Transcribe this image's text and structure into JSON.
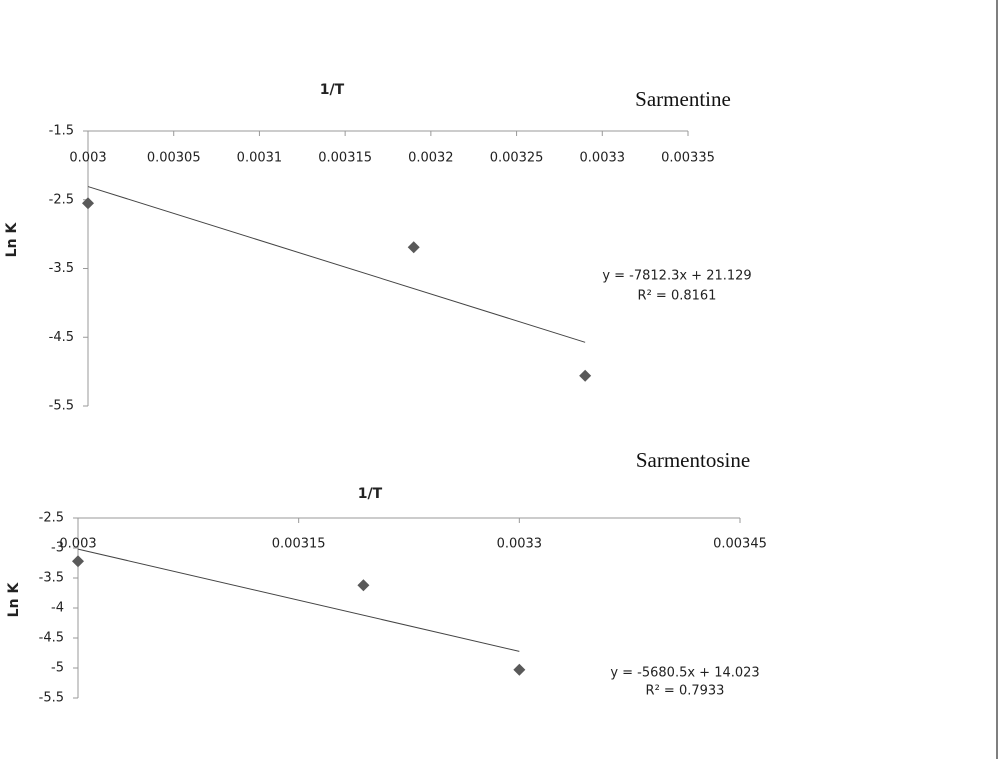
{
  "chart_data": [
    {
      "type": "scatter",
      "title": "Sarmentine",
      "x_label": "1/T",
      "y_label": "Ln K",
      "x": [
        0.003,
        0.00319,
        0.00329
      ],
      "values": [
        -2.55,
        -3.19,
        -5.06
      ],
      "color": "#595959",
      "xlim": [
        0.003,
        0.00335
      ],
      "xticks": [
        0.003,
        0.00305,
        0.0031,
        0.00315,
        0.0032,
        0.00325,
        0.0033,
        0.00335
      ],
      "ylim": [
        -5.5,
        -1.5
      ],
      "yticks": [
        -1.5,
        -2.5,
        -3.5,
        -4.5,
        -5.5
      ],
      "trendline": {
        "slope": -7812.3,
        "intercept": 21.129,
        "equation": "y = -7812.3x + 21.129",
        "r2": "R² = 0.8161"
      }
    },
    {
      "type": "scatter",
      "title": "Sarmentosine",
      "x_label": "1/T",
      "y_label": "Ln K",
      "x": [
        0.003,
        0.003194,
        0.0033
      ],
      "values": [
        -3.22,
        -3.62,
        -5.03
      ],
      "color": "#595959",
      "xlim": [
        0.003,
        0.00345
      ],
      "xticks": [
        0.003,
        0.00315,
        0.0033,
        0.00345
      ],
      "ylim": [
        -5.5,
        -2.5
      ],
      "yticks": [
        -2.5,
        -3,
        -3.5,
        -4,
        -4.5,
        -5,
        -5.5
      ],
      "trendline": {
        "slope": -5680.5,
        "intercept": 14.023,
        "equation": "y = -5680.5x + 14.023",
        "r2": "R² = 0.7933"
      }
    }
  ]
}
